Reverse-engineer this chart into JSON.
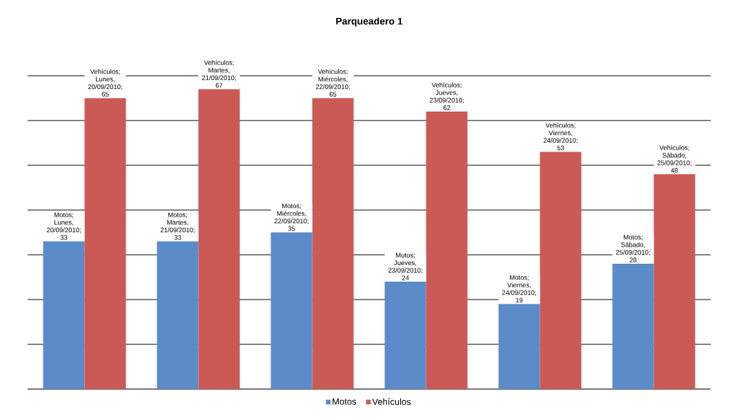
{
  "chart_data": {
    "type": "bar",
    "title": "Parqueadero 1",
    "categories": [
      null,
      null,
      null,
      null,
      null,
      null
    ],
    "series": [
      {
        "name": "Motos",
        "color": "#5b8bc9",
        "values": [
          33,
          33,
          35,
          24,
          19,
          28
        ],
        "value_labels": [
          "Motos; Lunes, 20/09/2010; 33",
          "Motos; Martes, 21/09/2010; 33",
          "Motos; Miércoles, 22/09/2010; 35",
          "Motos; Jueves, 23/09/2010; 24",
          "Motos; Viernes, 24/09/2010; 19",
          "Motos; Sábado, 25/09/2010; 28"
        ]
      },
      {
        "name": "Vehículos",
        "color": "#cb5a57",
        "values": [
          65,
          67,
          65,
          62,
          53,
          48
        ],
        "value_labels": [
          "Vehículos; Lunes, 20/09/2010; 65",
          "Vehículos; Martes, 21/09/2010; 67",
          "Vehículos; Miércoles, 22/09/2010; 65",
          "Vehículos; Jueves, 23/09/2010; 62",
          "Vehículos; Viernes, 24/09/2010; 53",
          "Vehículos; Sábado, 25/09/2010; 48"
        ]
      }
    ],
    "ylim": [
      0,
      70
    ],
    "yticks": [
      {
        "value": 0,
        "label": null
      },
      {
        "value": 10,
        "label": null
      },
      {
        "value": 20,
        "label": null
      },
      {
        "value": 30,
        "label": null
      },
      {
        "value": 40,
        "label": null
      },
      {
        "value": 50,
        "label": null
      },
      {
        "value": 60,
        "label": null
      },
      {
        "value": 70,
        "label": null
      }
    ],
    "grid": "y",
    "legend": "bottom"
  }
}
